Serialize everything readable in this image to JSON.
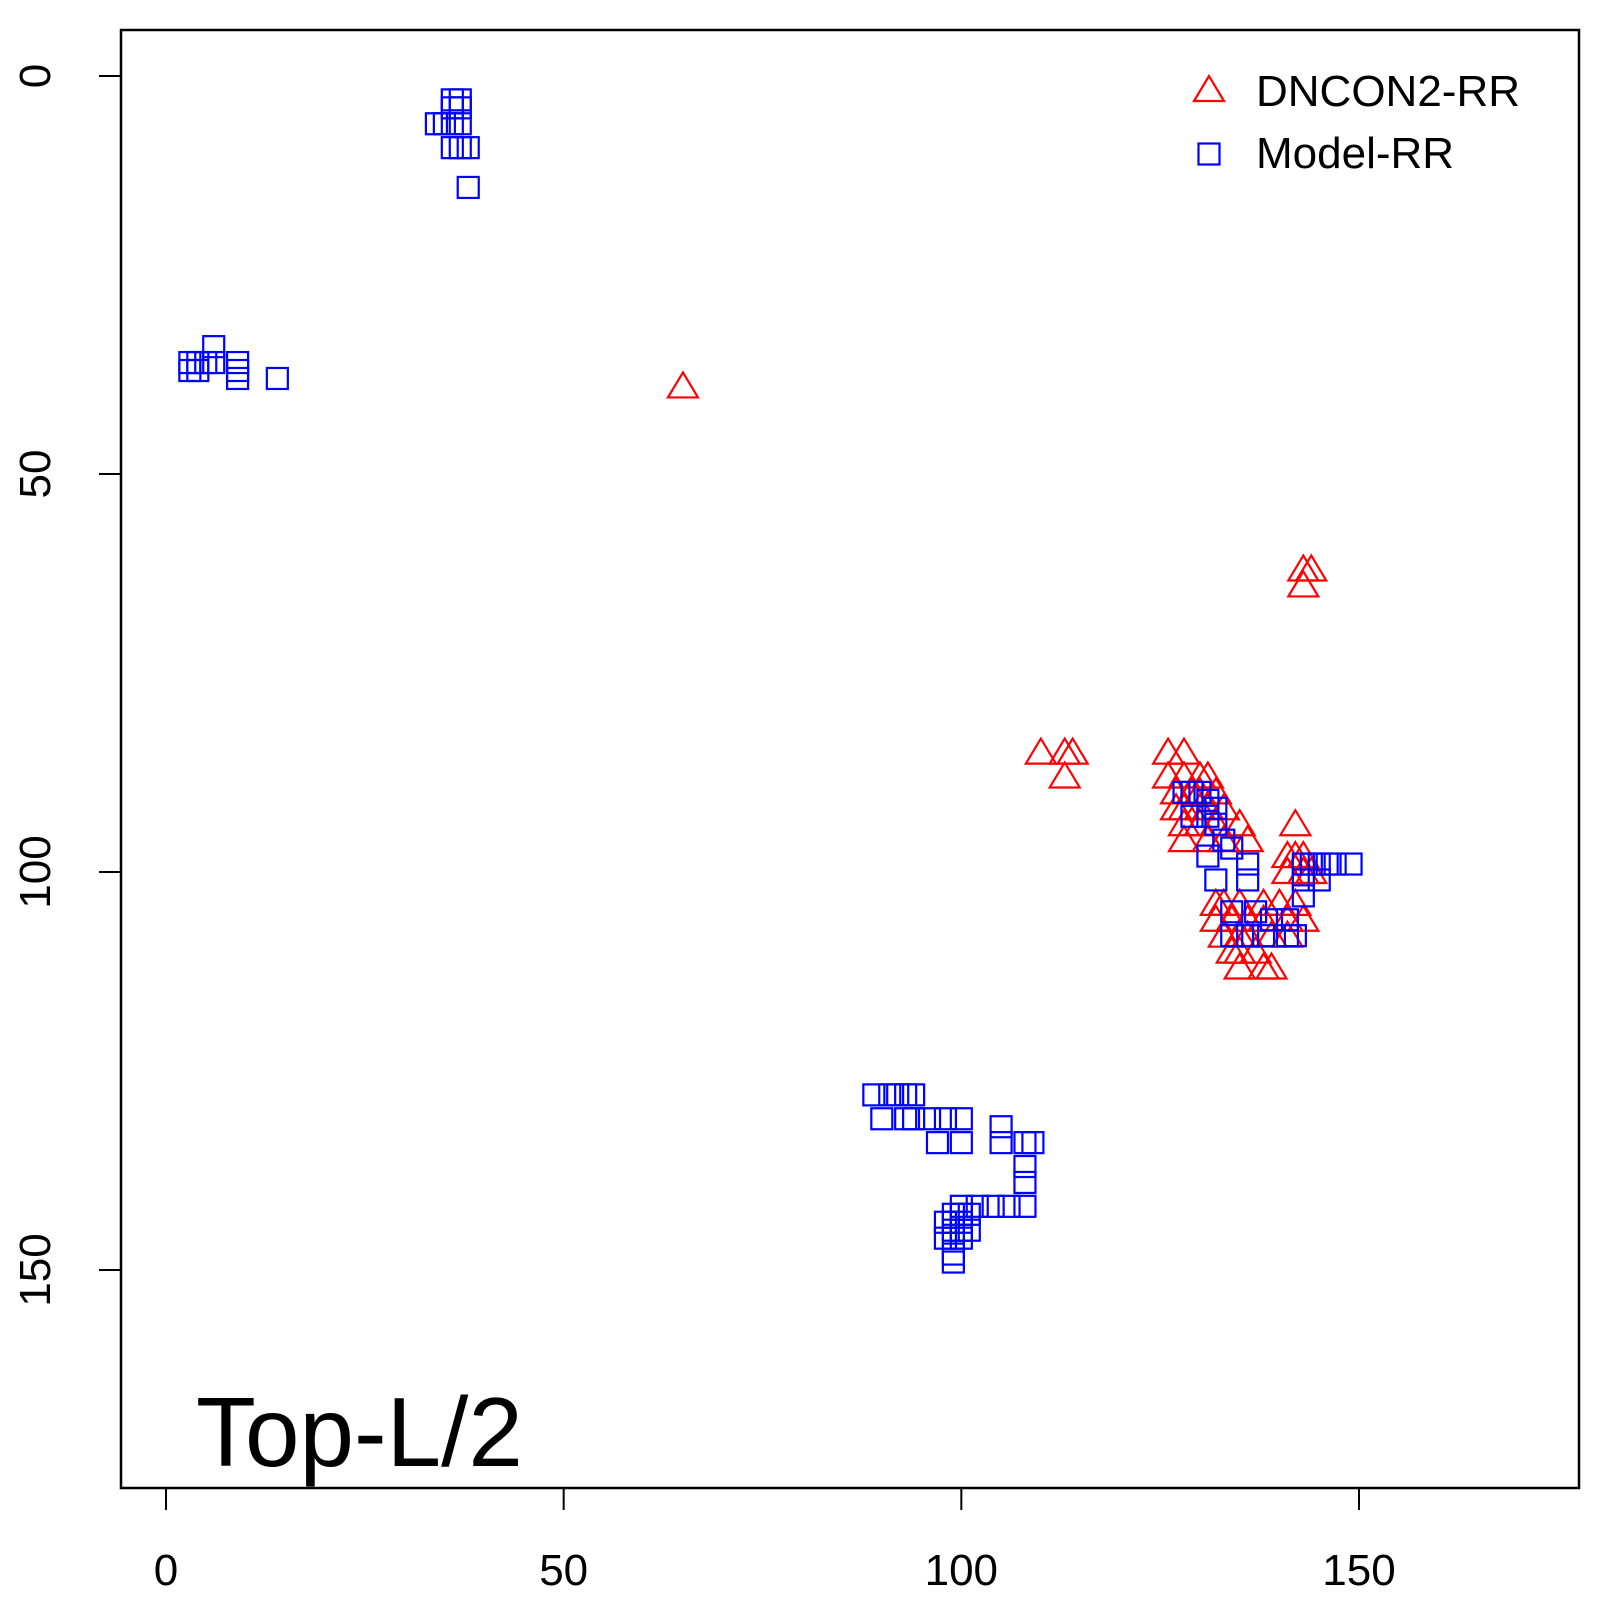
{
  "chart_data": {
    "type": "scatter",
    "title": "",
    "xlabel": "",
    "ylabel": "",
    "xlim": [
      -6,
      178
    ],
    "ylim": [
      177,
      -6
    ],
    "y_axis_reversed": true,
    "x_ticks": [
      "0",
      "50",
      "100",
      "150"
    ],
    "y_ticks": [
      "0",
      "50",
      "100",
      "150"
    ],
    "grid": false,
    "legend_position": "top-right",
    "annotation": "Top-L/2",
    "series": [
      {
        "name": "DNCON2-RR",
        "color": "#ff0000",
        "marker": "triangle",
        "points": [
          [
            65,
            39
          ],
          [
            110,
            85
          ],
          [
            113,
            85
          ],
          [
            114,
            85
          ],
          [
            113,
            88
          ],
          [
            126,
            85
          ],
          [
            128,
            85
          ],
          [
            126,
            88
          ],
          [
            128,
            88
          ],
          [
            130,
            88
          ],
          [
            131,
            88
          ],
          [
            127,
            90
          ],
          [
            129,
            90
          ],
          [
            130,
            90
          ],
          [
            132,
            90
          ],
          [
            127,
            92
          ],
          [
            128,
            92
          ],
          [
            130,
            92
          ],
          [
            131,
            92
          ],
          [
            133,
            92
          ],
          [
            128,
            94
          ],
          [
            130,
            94
          ],
          [
            132,
            94
          ],
          [
            135,
            94
          ],
          [
            142,
            94
          ],
          [
            128,
            96
          ],
          [
            131,
            96
          ],
          [
            133,
            96
          ],
          [
            136,
            96
          ],
          [
            141,
            98
          ],
          [
            142,
            98
          ],
          [
            143,
            98
          ],
          [
            141,
            100
          ],
          [
            143,
            100
          ],
          [
            144,
            100
          ],
          [
            132,
            104
          ],
          [
            133,
            104
          ],
          [
            135,
            104
          ],
          [
            138,
            104
          ],
          [
            140,
            104
          ],
          [
            142,
            104
          ],
          [
            132,
            106
          ],
          [
            134,
            106
          ],
          [
            136,
            106
          ],
          [
            138,
            106
          ],
          [
            141,
            106
          ],
          [
            143,
            106
          ],
          [
            133,
            108
          ],
          [
            135,
            108
          ],
          [
            136,
            108
          ],
          [
            139,
            108
          ],
          [
            141,
            108
          ],
          [
            134,
            110
          ],
          [
            135,
            110
          ],
          [
            137,
            110
          ],
          [
            135,
            112
          ],
          [
            138,
            112
          ],
          [
            139,
            112
          ],
          [
            143,
            62
          ],
          [
            144,
            62
          ],
          [
            143,
            64
          ]
        ]
      },
      {
        "name": "Model-RR",
        "color": "#0000ff",
        "marker": "square",
        "points": [
          [
            36,
            3
          ],
          [
            37,
            3
          ],
          [
            36,
            4
          ],
          [
            37,
            4
          ],
          [
            34,
            6
          ],
          [
            35,
            6
          ],
          [
            36,
            6
          ],
          [
            37,
            6
          ],
          [
            36,
            9
          ],
          [
            37,
            9
          ],
          [
            38,
            9
          ],
          [
            38,
            14
          ],
          [
            6,
            34
          ],
          [
            3,
            36
          ],
          [
            4,
            36
          ],
          [
            5,
            36
          ],
          [
            6,
            36
          ],
          [
            9,
            36
          ],
          [
            3,
            37
          ],
          [
            4,
            37
          ],
          [
            9,
            37
          ],
          [
            9,
            38
          ],
          [
            14,
            38
          ],
          [
            128,
            90
          ],
          [
            129,
            90
          ],
          [
            130,
            90
          ],
          [
            131,
            91
          ],
          [
            132,
            92
          ],
          [
            129,
            93
          ],
          [
            131,
            93
          ],
          [
            132,
            94
          ],
          [
            133,
            96
          ],
          [
            134,
            97
          ],
          [
            131,
            98
          ],
          [
            136,
            99
          ],
          [
            132,
            101
          ],
          [
            136,
            101
          ],
          [
            143,
            99
          ],
          [
            144,
            99
          ],
          [
            145,
            99
          ],
          [
            146,
            99
          ],
          [
            147,
            99
          ],
          [
            149,
            99
          ],
          [
            143,
            101
          ],
          [
            145,
            101
          ],
          [
            143,
            103
          ],
          [
            134,
            105
          ],
          [
            137,
            105
          ],
          [
            139,
            106
          ],
          [
            141,
            106
          ],
          [
            134,
            108
          ],
          [
            136,
            108
          ],
          [
            138,
            108
          ],
          [
            141,
            108
          ],
          [
            142,
            108
          ],
          [
            89,
            128
          ],
          [
            91,
            128
          ],
          [
            92,
            128
          ],
          [
            93,
            128
          ],
          [
            94,
            128
          ],
          [
            90,
            131
          ],
          [
            93,
            131
          ],
          [
            94,
            131
          ],
          [
            96,
            131
          ],
          [
            98,
            131
          ],
          [
            100,
            131
          ],
          [
            105,
            132
          ],
          [
            97,
            134
          ],
          [
            100,
            134
          ],
          [
            105,
            134
          ],
          [
            108,
            134
          ],
          [
            109,
            134
          ],
          [
            108,
            137
          ],
          [
            108,
            139
          ],
          [
            100,
            142
          ],
          [
            102,
            142
          ],
          [
            104,
            142
          ],
          [
            106,
            142
          ],
          [
            108,
            142
          ],
          [
            99,
            143
          ],
          [
            100,
            143
          ],
          [
            101,
            143
          ],
          [
            98,
            144
          ],
          [
            99,
            144
          ],
          [
            100,
            144
          ],
          [
            99,
            145
          ],
          [
            100,
            145
          ],
          [
            101,
            145
          ],
          [
            98,
            146
          ],
          [
            99,
            146
          ],
          [
            100,
            146
          ],
          [
            99,
            148
          ],
          [
            99,
            149
          ]
        ]
      }
    ]
  }
}
